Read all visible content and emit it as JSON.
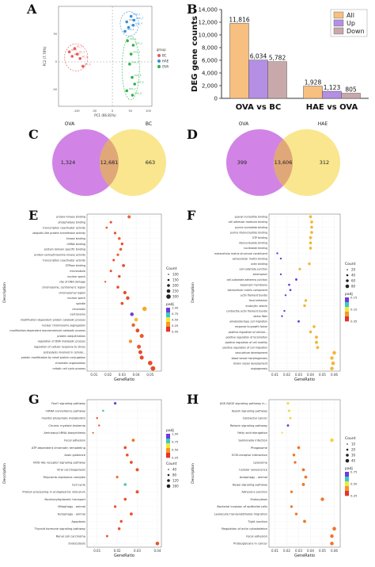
{
  "panel_labels": {
    "a": "A",
    "b": "B",
    "c": "C",
    "d": "D",
    "e": "E",
    "f": "F",
    "g": "G",
    "h": "H"
  },
  "chart_data": [
    {
      "panel": "A",
      "type": "scatter",
      "xlabel": "PC1 (66.81%)",
      "ylabel": "PC2 (7.78%)",
      "legend_title": "group",
      "legend_position": "right",
      "colors": {
        "BC": "#e85a5a",
        "HAE": "#3a8fd9",
        "OVA": "#2bb34a"
      },
      "series": [
        {
          "name": "BC",
          "points": [
            [
              -120,
              18
            ],
            [
              -112,
              10
            ],
            [
              -105,
              24
            ],
            [
              -98,
              14
            ],
            [
              -90,
              6
            ],
            [
              -82,
              -8
            ]
          ]
        },
        {
          "name": "HAE",
          "points": [
            [
              40,
              72
            ],
            [
              52,
              82
            ],
            [
              60,
              75
            ],
            [
              58,
              66
            ],
            [
              45,
              62
            ],
            [
              35,
              55
            ]
          ]
        },
        {
          "name": "OVA",
          "points": [
            [
              42,
              38
            ],
            [
              58,
              30
            ],
            [
              52,
              14
            ],
            [
              48,
              -4
            ],
            [
              55,
              -28
            ],
            [
              62,
              -40
            ],
            [
              40,
              -52
            ],
            [
              56,
              -60
            ]
          ]
        }
      ],
      "xlim": [
        -150,
        110
      ],
      "ylim": [
        -80,
        100
      ],
      "xticks": [
        -100,
        -50,
        0,
        50,
        100
      ],
      "yticks": [
        -50,
        0,
        50
      ]
    },
    {
      "panel": "B",
      "type": "bar",
      "ylabel": "DEG gene counts",
      "categories": [
        "OVA vs BC",
        "HAE vs OVA"
      ],
      "series": [
        {
          "name": "All",
          "color": "#f7bf80",
          "values": [
            11816,
            1928
          ]
        },
        {
          "name": "Up",
          "color": "#b48fe3",
          "values": [
            6034,
            1123
          ]
        },
        {
          "name": "Down",
          "color": "#c9a8ac",
          "values": [
            5782,
            805
          ]
        }
      ],
      "data_labels": [
        [
          "11,816",
          "6,034",
          "5,782"
        ],
        [
          "1,928",
          "1,123",
          "805"
        ]
      ],
      "ylim": [
        0,
        14000
      ],
      "yticks": [
        0,
        2000,
        4000,
        6000,
        8000,
        10000,
        12000,
        14000
      ],
      "ytick_labels": [
        "0",
        "2,000",
        "4,000",
        "6,000",
        "8,000",
        "10,000",
        "12,000",
        "14,000"
      ],
      "legend_position": "top-right"
    },
    {
      "panel": "C",
      "type": "venn",
      "sets": [
        {
          "name": "OVA",
          "color": "#c96ee0"
        },
        {
          "name": "BC",
          "color": "#f8e27a"
        }
      ],
      "only_left": "1,324",
      "overlap": "12,681",
      "only_right": "663",
      "overlap_color": "#e0a878"
    },
    {
      "panel": "D",
      "type": "venn",
      "sets": [
        {
          "name": "OVA",
          "color": "#c96ee0"
        },
        {
          "name": "HAE",
          "color": "#f8e27a"
        }
      ],
      "only_left": "399",
      "overlap": "13,606",
      "only_right": "312",
      "overlap_color": "#e0a878"
    },
    {
      "panel": "E",
      "type": "scatter",
      "ylabel": "Description",
      "xlabel": "GeneRatio",
      "xlim": [
        0.005,
        0.058
      ],
      "xticks": [
        0.01,
        0.02,
        0.03,
        0.04,
        0.05
      ],
      "xtick_labels": [
        "0.01",
        "0.02",
        "0.03",
        "0.04",
        "0.05"
      ],
      "categories": [
        "protein kinase binding",
        "phosphatase binding",
        "transcription coactivator activity",
        "ubiquitin-like protein transferase activity",
        "kinase binding",
        "mRNA binding",
        "protein domain specific binding",
        "protein serine/threonine kinase activity",
        "transcription coactivator activity",
        "GTPase binding",
        "microtubule",
        "nuclear speck",
        "site of DNA damage",
        "chromosome, centromeric region",
        "chromosomal region",
        "nuclear speck",
        "spindle",
        "chromatin",
        "centrosome",
        "modification-dependent protein catabolic process",
        "nuclear chromosome segregation",
        "modification-dependent macromolecule catabolic process",
        "protein ubiquitination",
        "regulation of DNA metabolic process",
        "regulation of cellular response to stress",
        "proteolysis involved in cellular...",
        "protein modification by small protein conjugation",
        "chromatin organization",
        "mitotic cell cycle process"
      ],
      "values": [
        0.035,
        0.022,
        0.019,
        0.025,
        0.028,
        0.03,
        0.029,
        0.027,
        0.024,
        0.031,
        0.022,
        0.028,
        0.018,
        0.027,
        0.032,
        0.034,
        0.03,
        0.046,
        0.037,
        0.04,
        0.038,
        0.041,
        0.044,
        0.036,
        0.042,
        0.043,
        0.044,
        0.05,
        0.052
      ],
      "padj": [
        0.1,
        0.05,
        0.08,
        0.07,
        0.1,
        0.05,
        0.08,
        0.1,
        0.05,
        0.06,
        0.07,
        0.05,
        0.1,
        0.06,
        0.05,
        0.05,
        0.06,
        0.25,
        0.7,
        0.3,
        0.1,
        0.05,
        0.08,
        0.2,
        0.08,
        0.05,
        0.05,
        0.05,
        0.05
      ],
      "sizes": [
        130,
        80,
        60,
        90,
        110,
        100,
        100,
        90,
        80,
        120,
        80,
        100,
        50,
        110,
        150,
        170,
        120,
        260,
        180,
        190,
        170,
        200,
        220,
        160,
        210,
        210,
        220,
        270,
        290
      ],
      "legend_count_title": "Count",
      "legend_count_values": [
        "100",
        "150",
        "200",
        "250",
        "300"
      ],
      "legend_padj_title": "padj",
      "legend_padj_ticks": [
        "1.00",
        "0.75",
        "0.50",
        "0.25",
        "0.00"
      ]
    },
    {
      "panel": "F",
      "type": "scatter",
      "ylabel": "Description",
      "xlabel": "GeneRatio",
      "xlim": [
        0.005,
        0.065
      ],
      "xticks": [
        0.01,
        0.02,
        0.03,
        0.04,
        0.05,
        0.06
      ],
      "xtick_labels": [
        "0.01",
        "0.02",
        "0.03",
        "0.04",
        "0.05",
        "0.06"
      ],
      "categories": [
        "guanyl nucleotide binding",
        "cell adhesion molecule binding",
        "purine nucleotide binding",
        "purine ribonucleotide binding",
        "GTP binding",
        "ribonucleoside binding",
        "nucleoside binding",
        "extracellular matrix structural constituent",
        "extracellular matrix binding",
        "actin binding",
        "cell-substrate junction",
        "actomyosin",
        "cell-substrate adherens junction",
        "basement membrane",
        "extracellular matrix component",
        "actin filament bundle",
        "focal adhesion",
        "endocytic vesicle",
        "contractile actin filament bundle",
        "stress fiber",
        "ameboidal-type cell migration",
        "response to growth factor",
        "positive regulation of cellular...",
        "positive regulation of locomotion",
        "positive regulation of cell motility",
        "positive regulation of cell migration",
        "vasculature development",
        "blood vessel morphogenesis",
        "brown vessel development",
        "angiogenesis"
      ],
      "values": [
        0.04,
        0.041,
        0.041,
        0.041,
        0.04,
        0.04,
        0.04,
        0.012,
        0.015,
        0.039,
        0.031,
        0.015,
        0.028,
        0.022,
        0.023,
        0.019,
        0.036,
        0.035,
        0.018,
        0.016,
        0.03,
        0.043,
        0.04,
        0.045,
        0.045,
        0.046,
        0.06,
        0.058,
        0.059,
        0.058
      ],
      "padj": [
        0.02,
        0.02,
        0.02,
        0.02,
        0.02,
        0.02,
        0.02,
        0.05,
        0.05,
        0.02,
        0.02,
        0.05,
        0.05,
        0.05,
        0.05,
        0.05,
        0.02,
        0.02,
        0.05,
        0.05,
        0.05,
        0.02,
        0.02,
        0.02,
        0.02,
        0.02,
        0.02,
        0.02,
        0.02,
        0.02
      ],
      "sizes": [
        90,
        90,
        90,
        90,
        90,
        90,
        90,
        40,
        40,
        80,
        70,
        40,
        60,
        50,
        50,
        40,
        80,
        80,
        40,
        40,
        60,
        90,
        90,
        100,
        100,
        100,
        140,
        130,
        140,
        130
      ],
      "legend_count_title": "Count",
      "legend_count_values": [
        "20",
        "40",
        "60",
        "80"
      ],
      "legend_padj_title": "padj",
      "legend_padj_ticks": [
        "0.15",
        "0.10",
        "0.05"
      ]
    },
    {
      "panel": "G",
      "type": "scatter",
      "ylabel": "Description",
      "xlabel": "GeneRatio",
      "xlim": [
        0.005,
        0.042
      ],
      "xticks": [
        0.01,
        0.02,
        0.03,
        0.04
      ],
      "xtick_labels": [
        "0.01",
        "0.02",
        "0.03",
        "0.04"
      ],
      "categories": [
        "FoxO signaling pathway",
        "mRNA surveillance pathway",
        "Inositol phosphate metabolism",
        "Chronic myeloid leukemia",
        "Aminoacyl-tRNA biosynthesis",
        "Focal adhesion",
        "ATP-dependent chromatin remodeling",
        "Axon guidance",
        "NOD-like receptor signaling pathway",
        "Viral carcinogenesis",
        "Polycomb repressive complex",
        "Cell cycle",
        "Protein processing in endoplasmic reticulum",
        "Nucleocytoplasmic transport",
        "Mitophagy - animal",
        "Autophagy - animal",
        "Apoptosis",
        "Thyroid hormone signaling pathway",
        "Renal cell carcinoma",
        "Endocytosis"
      ],
      "values": [
        0.019,
        0.013,
        0.01,
        0.011,
        0.008,
        0.028,
        0.024,
        0.025,
        0.027,
        0.03,
        0.02,
        0.024,
        0.03,
        0.024,
        0.019,
        0.027,
        0.022,
        0.021,
        0.015,
        0.04
      ],
      "padj": [
        0.55,
        0.4,
        0.05,
        0.05,
        0.05,
        0.1,
        0.05,
        0.05,
        0.05,
        0.05,
        0.1,
        0.4,
        0.05,
        0.05,
        0.05,
        0.05,
        0.05,
        0.05,
        0.05,
        0.05
      ],
      "sizes": [
        70,
        50,
        40,
        40,
        30,
        100,
        90,
        90,
        100,
        110,
        70,
        90,
        110,
        90,
        70,
        100,
        80,
        80,
        60,
        140
      ],
      "legend_padj_title": "padj",
      "legend_padj_ticks": [
        "1.00",
        "0.75",
        "0.50",
        "0.25"
      ],
      "legend_count_title": "Count",
      "legend_count_values": [
        "40",
        "80",
        "120",
        "160"
      ]
    },
    {
      "panel": "H",
      "type": "scatter",
      "ylabel": "Description",
      "xlabel": "GeneRatio",
      "xlim": [
        0.005,
        0.065
      ],
      "xticks": [
        0.01,
        0.02,
        0.03,
        0.04,
        0.05,
        0.06
      ],
      "xtick_labels": [
        "0.01",
        "0.02",
        "0.03",
        "0.04",
        "0.05",
        "0.06"
      ],
      "categories": [
        "AGE-RAGE signaling pathway in...",
        "Apelin signaling pathway",
        "Colorectal cancer",
        "Relaxin signaling pathway",
        "Fatty acid elongation",
        "Salmonella infection",
        "Phagosome",
        "ECM-receptor interaction",
        "Lysosome",
        "Cellular senescence",
        "Autophagy - animal",
        "Hippo signaling pathway",
        "Adherens junction",
        "Endocytosis",
        "Bacterial invasion of epithelial cells",
        "Leukocyte transendothelial migration",
        "Tight junction",
        "Regulation of actin cytoskeleton",
        "Focal adhesion",
        "Proteoglycans in cancer"
      ],
      "values": [
        0.021,
        0.022,
        0.023,
        0.021,
        0.016,
        0.058,
        0.03,
        0.026,
        0.027,
        0.034,
        0.036,
        0.034,
        0.024,
        0.05,
        0.024,
        0.028,
        0.035,
        0.06,
        0.058,
        0.058
      ],
      "padj": [
        0.05,
        0.05,
        0.05,
        0.1,
        0.05,
        0.05,
        0.02,
        0.02,
        0.02,
        0.02,
        0.02,
        0.02,
        0.02,
        0.02,
        0.02,
        0.02,
        0.02,
        0.02,
        0.02,
        0.02
      ],
      "sizes": [
        60,
        60,
        60,
        60,
        30,
        140,
        90,
        80,
        80,
        100,
        100,
        100,
        70,
        130,
        70,
        80,
        100,
        150,
        140,
        140
      ],
      "legend_count_title": "Count",
      "legend_count_values": [
        "10",
        "20",
        "30",
        "40"
      ],
      "legend_padj_title": "padj",
      "legend_padj_ticks": [
        "0.75",
        "0.50",
        "0.25"
      ]
    }
  ]
}
